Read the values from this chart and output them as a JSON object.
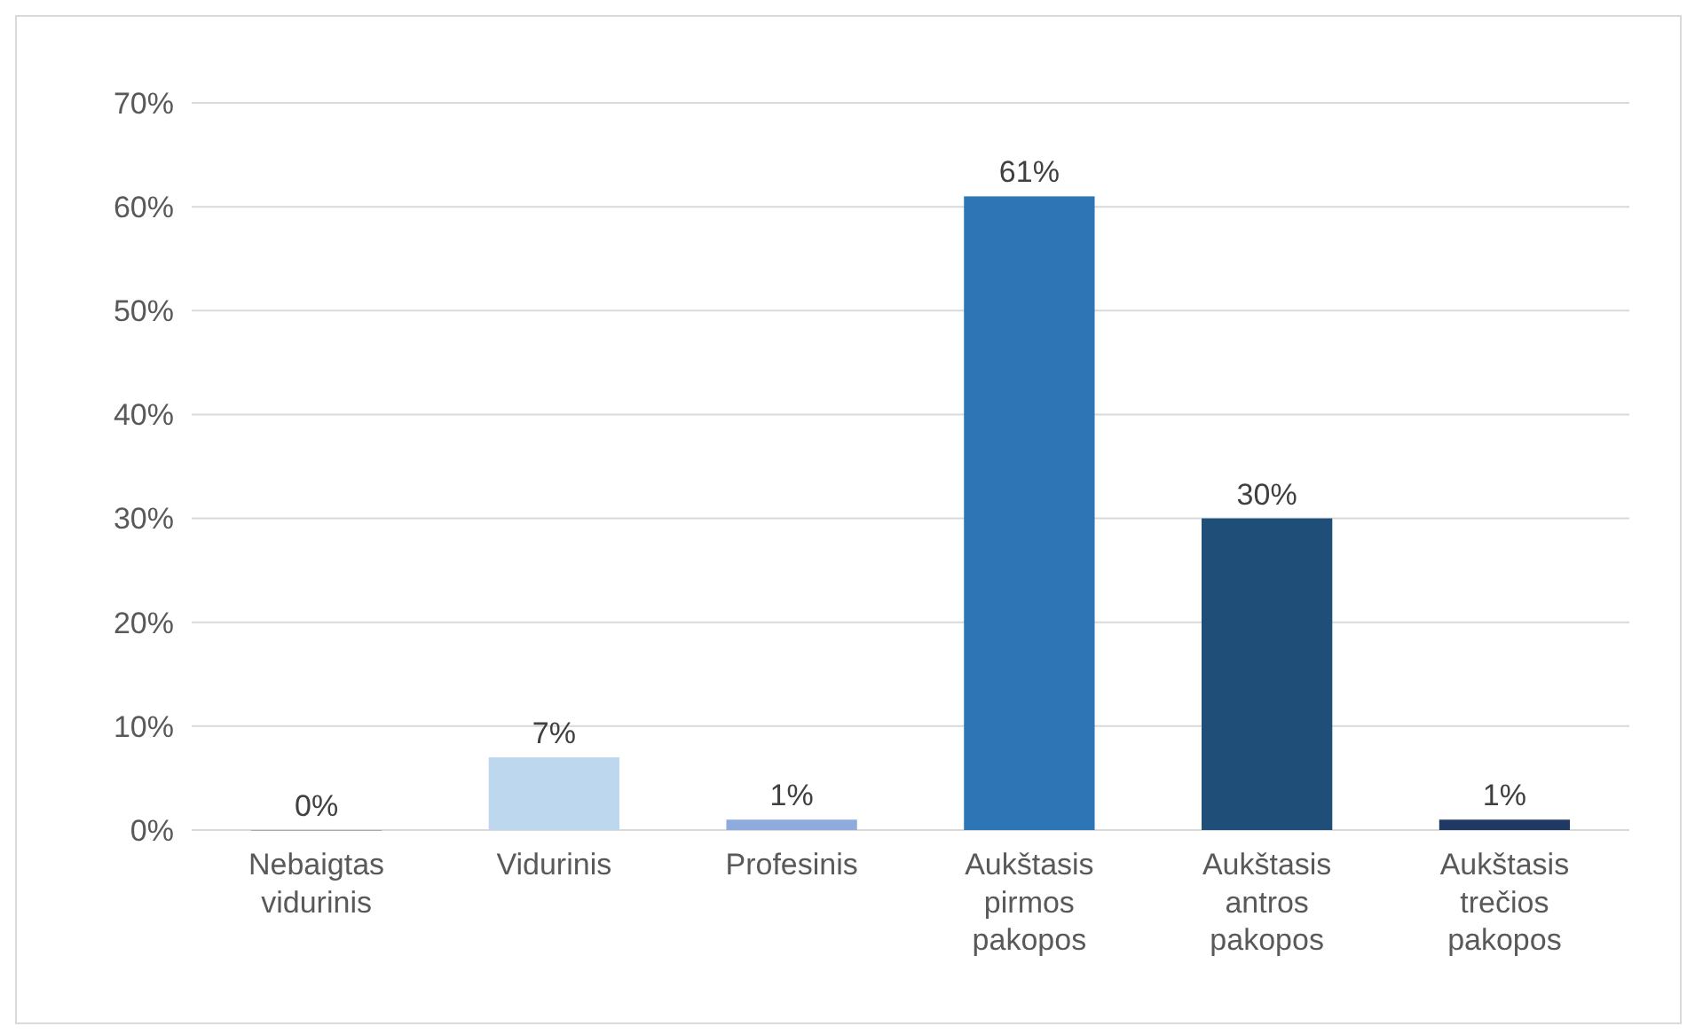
{
  "chart_data": {
    "type": "bar",
    "categories": [
      "Nebaigtas vidurinis",
      "Vidurinis",
      "Profesinis",
      "Aukštasis pirmos pakopos",
      "Aukštasis antros pakopos",
      "Aukštasis trečios pakopos"
    ],
    "values": [
      0,
      7,
      1,
      61,
      30,
      1
    ],
    "colors": [
      "#a5acb5",
      "#bdd7ee",
      "#8faadc",
      "#2e75b6",
      "#1f4e79",
      "#203864"
    ],
    "value_labels": [
      "0%",
      "7%",
      "1%",
      "61%",
      "30%",
      "1%"
    ],
    "ylim": [
      0,
      70
    ],
    "yticks": [
      {
        "value": 0,
        "label": "0%"
      },
      {
        "value": 10,
        "label": "10%"
      },
      {
        "value": 20,
        "label": "20%"
      },
      {
        "value": 30,
        "label": "30%"
      },
      {
        "value": 40,
        "label": "40%"
      },
      {
        "value": 50,
        "label": "50%"
      },
      {
        "value": 60,
        "label": "60%"
      },
      {
        "value": 70,
        "label": "70%"
      }
    ],
    "grid": "y"
  }
}
